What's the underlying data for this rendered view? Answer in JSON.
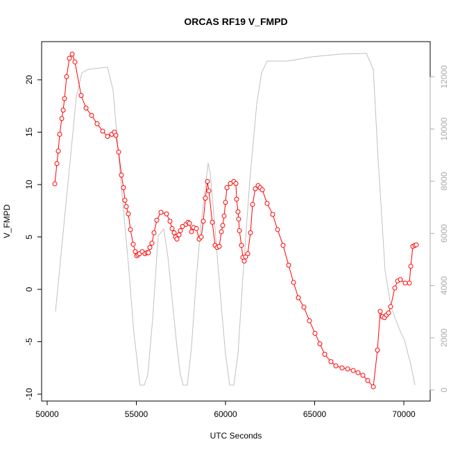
{
  "chart_data": {
    "type": "line",
    "title": "ORCAS RF19 V_FMPD",
    "x_label": "UTC Seconds",
    "y_label": "V_FMPD",
    "xlim": [
      49689,
      71478
    ],
    "ylim": [
      -10.66,
      23.64
    ],
    "y2lim": [
      -425,
      13351
    ],
    "xticks": [
      50000,
      55000,
      60000,
      65000,
      70000
    ],
    "yticks": [
      -10,
      -5,
      0,
      5,
      10,
      15,
      20
    ],
    "y2ticks": [
      0,
      2000,
      4000,
      6000,
      8000,
      10000,
      12000
    ],
    "series": [
      {
        "color": "#ff0000",
        "markers": true,
        "x": [
          50428,
          50545,
          50623,
          50700,
          50817,
          50895,
          50973,
          51089,
          51245,
          51401,
          51556,
          51906,
          52179,
          52490,
          52802,
          53113,
          53385,
          53619,
          53774,
          53852,
          54008,
          54163,
          54280,
          54358,
          54436,
          54552,
          54669,
          54825,
          54942,
          55019,
          55097,
          55175,
          55331,
          55486,
          55603,
          55681,
          55759,
          55875,
          55992,
          56148,
          56381,
          56693,
          56887,
          57004,
          57121,
          57199,
          57276,
          57393,
          57471,
          57588,
          57782,
          57899,
          57977,
          58093,
          58210,
          58366,
          58521,
          58638,
          58755,
          58872,
          58988,
          59066,
          59261,
          59416,
          59533,
          59650,
          59767,
          59845,
          59922,
          60000,
          60078,
          60272,
          60467,
          60584,
          60622,
          60700,
          60739,
          60778,
          60895,
          60973,
          61050,
          61128,
          61245,
          61401,
          61517,
          61673,
          61829,
          61945,
          62062,
          62334,
          62646,
          62918,
          63229,
          63541,
          63813,
          64086,
          64397,
          64708,
          65019,
          65292,
          65564,
          65914,
          66187,
          66537,
          66848,
          67160,
          67432,
          67704,
          67976,
          68288,
          68521,
          68677,
          68794,
          68910,
          69027,
          69144,
          69261,
          69494,
          69650,
          69806,
          70078,
          70311,
          70389,
          70506,
          70623,
          70700
        ],
        "values": [
          10.07,
          12.0,
          13.2,
          14.8,
          16.3,
          17.1,
          18.2,
          20.3,
          22.05,
          22.45,
          21.7,
          18.5,
          17.3,
          16.6,
          15.8,
          15.1,
          14.6,
          14.8,
          15.0,
          14.7,
          13.1,
          10.9,
          9.7,
          8.5,
          7.9,
          7.2,
          5.7,
          4.3,
          3.6,
          3.2,
          3.3,
          3.4,
          3.6,
          3.4,
          3.5,
          3.5,
          4.0,
          4.4,
          5.4,
          6.6,
          7.35,
          7.2,
          6.5,
          5.8,
          5.4,
          5.0,
          4.8,
          5.2,
          5.6,
          6.0,
          6.2,
          6.4,
          6.3,
          5.5,
          5.9,
          5.8,
          4.8,
          5.0,
          6.5,
          8.7,
          10.3,
          9.4,
          6.4,
          4.2,
          4.0,
          4.1,
          5.5,
          6.1,
          7.0,
          8.3,
          9.7,
          10.1,
          10.3,
          10.1,
          8.6,
          7.4,
          6.7,
          5.6,
          4.2,
          3.05,
          2.7,
          3.1,
          3.4,
          5.4,
          8.1,
          9.6,
          9.9,
          9.7,
          9.5,
          8.2,
          7.15,
          5.7,
          4.2,
          2.3,
          0.66,
          -0.8,
          -1.7,
          -3.0,
          -4.2,
          -5.2,
          -6.2,
          -6.9,
          -7.3,
          -7.5,
          -7.6,
          -7.75,
          -7.95,
          -8.2,
          -8.7,
          -9.3,
          -5.8,
          -2.1,
          -2.6,
          -2.7,
          -2.45,
          -2.25,
          -1.65,
          0.13,
          0.8,
          0.93,
          0.6,
          0.6,
          2.2,
          4.1,
          4.2,
          4.25
        ]
      },
      {
        "color": "#c0c0c0",
        "axis": "y2",
        "markers": false,
        "x": [
          50467,
          51634,
          51945,
          52296,
          53385,
          53696,
          53891,
          54163,
          54552,
          54864,
          55136,
          55214,
          55447,
          55642,
          55914,
          56226,
          56537,
          56770,
          57004,
          57276,
          57471,
          57626,
          57860,
          58093,
          58366,
          58638,
          59027,
          59144,
          59416,
          59728,
          60000,
          60233,
          60467,
          60700,
          60973,
          61362,
          61751,
          62023,
          62334,
          63502,
          64864,
          66420,
          67899,
          68288,
          68560,
          68949,
          69261,
          69533,
          69844,
          70039,
          70233,
          70389,
          70545,
          70623
        ],
        "values": [
          3006,
          11225,
          12156,
          12289,
          12369,
          11491,
          9895,
          7767,
          4841,
          2181,
          585,
          186,
          186,
          585,
          2713,
          5905,
          6171,
          5107,
          3511,
          1649,
          585,
          186,
          186,
          1649,
          4309,
          6437,
          8698,
          8299,
          6171,
          3511,
          1383,
          186,
          186,
          1383,
          4309,
          8033,
          10959,
          12156,
          12608,
          12608,
          12768,
          12874,
          12901,
          12289,
          8831,
          4575,
          3245,
          2713,
          2181,
          1915,
          1383,
          984,
          452,
          186
        ]
      }
    ]
  }
}
